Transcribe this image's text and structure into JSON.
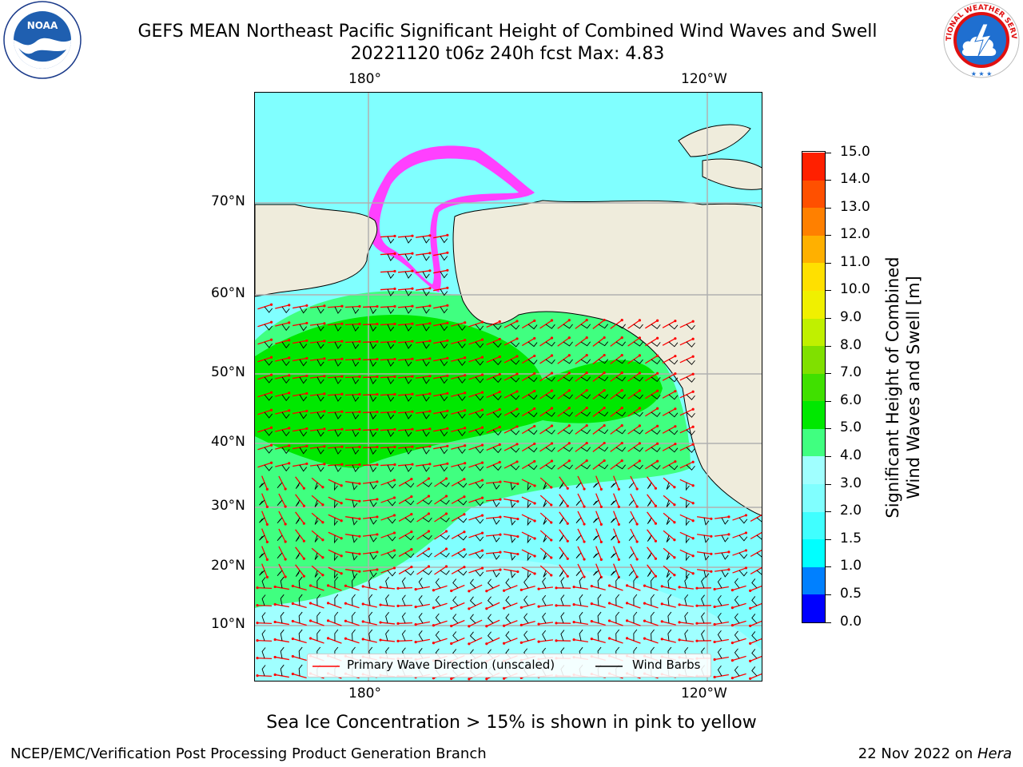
{
  "header": {
    "title_line1": "GEFS MEAN Northeast Pacific Significant Height of Combined Wind Waves and Swell",
    "title_line2": "20221120 t06z 240h fcst   Max: 4.83"
  },
  "logos": {
    "left": "noaa-logo",
    "right": "nws-logo",
    "nws_text": "NATIONAL WEATHER SERVICE"
  },
  "map": {
    "lon_labels_top": [
      "180°",
      "120°W"
    ],
    "lon_labels_bottom": [
      "180°",
      "120°W"
    ],
    "lat_labels": [
      "70°N",
      "60°N",
      "50°N",
      "40°N",
      "30°N",
      "20°N",
      "10°N"
    ],
    "land_color": "#efecdc",
    "gridline_color": "#b0b0b0"
  },
  "legend": {
    "wave_label": "Primary Wave Direction (unscaled)",
    "barb_label": "Wind Barbs",
    "wave_color": "#ff0000",
    "barb_color": "#000000"
  },
  "colorbar": {
    "title_line1": "Significant Height of Combined",
    "title_line2": "Wind Waves and Swell [m]",
    "ticks": [
      "0.0",
      "0.5",
      "1.0",
      "1.5",
      "2.0",
      "3.0",
      "4.0",
      "5.0",
      "6.0",
      "7.0",
      "8.0",
      "9.0",
      "10.0",
      "11.0",
      "12.0",
      "13.0",
      "14.0",
      "15.0"
    ],
    "colors": [
      "#0000ff",
      "#0080ff",
      "#00ffff",
      "#40ffff",
      "#80ffff",
      "#a0ffff",
      "#40ff80",
      "#00e800",
      "#40e000",
      "#80e000",
      "#c0f000",
      "#f0f000",
      "#ffe000",
      "#ffb000",
      "#ff8000",
      "#ff5000",
      "#ff2000",
      "#ff0000"
    ]
  },
  "footer": {
    "ice_note": "Sea Ice Concentration > 15% is shown in pink to yellow",
    "left_text": "NCEP/EMC/Verification Post Processing Product Generation Branch",
    "right_date": "22 Nov 2022 on ",
    "right_machine": "Hera"
  }
}
